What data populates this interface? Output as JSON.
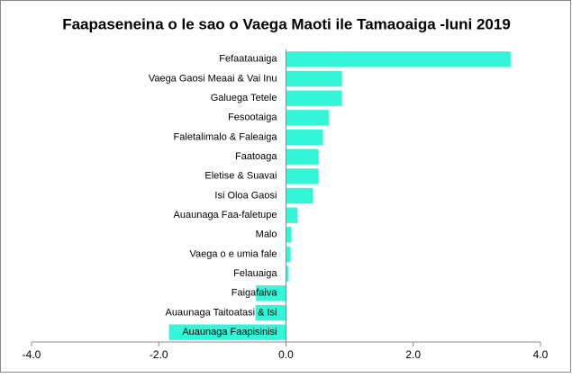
{
  "chart_data": {
    "type": "hbar",
    "title": "Faapaseneina  o le sao o Vaega Maoti ile Tamaoaiga -Iuni 2019",
    "categories": [
      "Fefaatauaiga",
      "Vaega Gaosi Meaai & Vai Inu",
      "Galuega Tetele",
      "Fesootaiga",
      "Faletalimalo & Faleaiga",
      "Faatoaga",
      "Eletise & Suavai",
      "Isi Oloa Gaosi",
      "Auaunaga Faa-faletupe",
      "Malo",
      "Vaega o e umia fale",
      "Felauaiga",
      "Faigafaiva",
      "Auaunaga Taitoatasi & Isi",
      "Auaunaga Faapisinisi"
    ],
    "values": [
      3.53,
      0.88,
      0.88,
      0.67,
      0.58,
      0.51,
      0.51,
      0.42,
      0.18,
      0.08,
      0.07,
      0.04,
      -0.47,
      -0.48,
      -1.84
    ],
    "color": "#33f5d8",
    "xlim": [
      -4,
      4
    ],
    "xticks": [
      {
        "value": -4,
        "label": "-4.0"
      },
      {
        "value": -2,
        "label": "-2.0"
      },
      {
        "value": 0,
        "label": "0.0"
      },
      {
        "value": 2,
        "label": "2.0"
      },
      {
        "value": 4,
        "label": "4.0"
      }
    ]
  }
}
